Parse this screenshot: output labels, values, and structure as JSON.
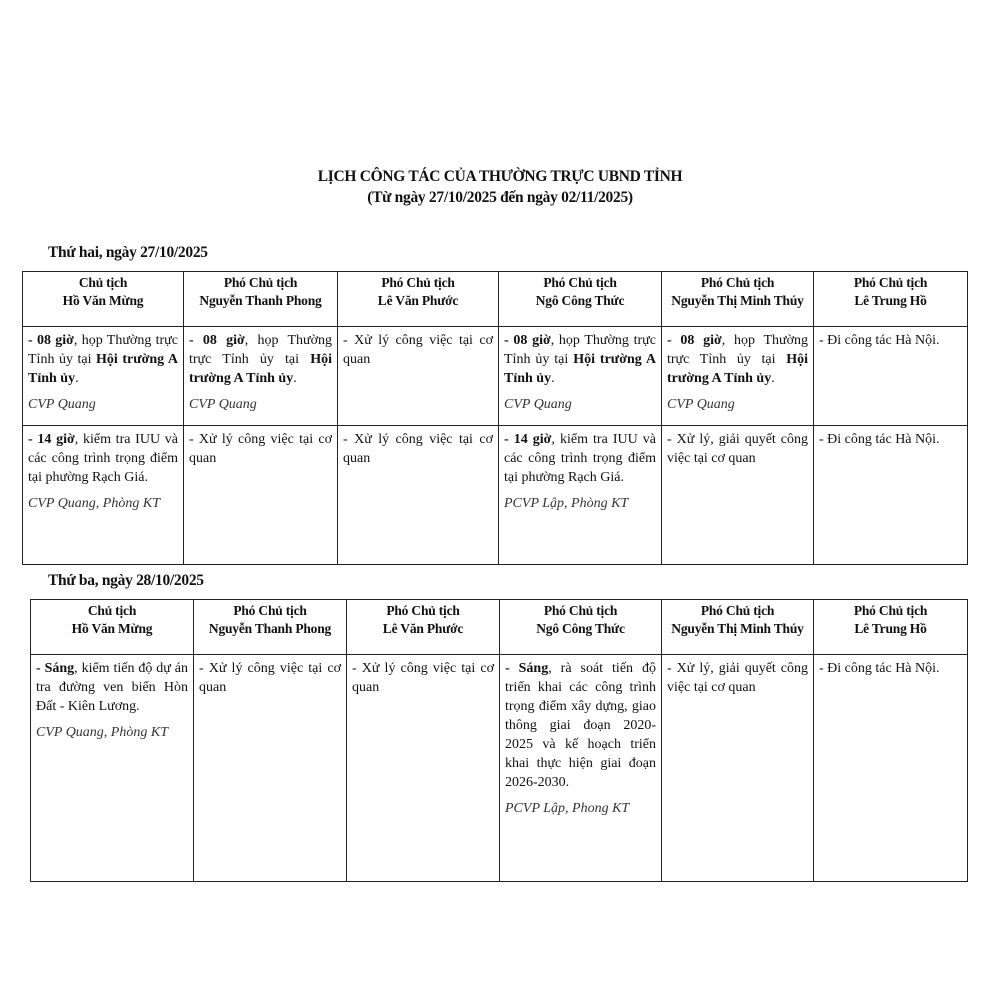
{
  "document": {
    "title": "LỊCH CÔNG TÁC CỦA THƯỜNG TRỰC UBND TỈNH",
    "subtitle": "(Từ ngày 27/10/2025 đến ngày 02/11/2025)"
  },
  "days": [
    {
      "label": "Thứ hai, ngày 27/10/2025",
      "headers": [
        {
          "role": "Chủ tịch",
          "name": "Hồ Văn Mừng"
        },
        {
          "role": "Phó Chủ tịch",
          "name": "Nguyễn Thanh Phong"
        },
        {
          "role": "Phó Chủ tịch",
          "name": "Lê Văn Phước"
        },
        {
          "role": "Phó Chủ tịch",
          "name": "Ngô Công Thức"
        },
        {
          "role": "Phó Chủ tịch",
          "name": "Nguyễn Thị Minh Thúy"
        },
        {
          "role": "Phó Chủ tịch",
          "name": "Lê Trung Hồ"
        }
      ],
      "rows": [
        [
          {
            "runs": [
              {
                "t": "- 08 giờ",
                "b": true
              },
              {
                "t": ", họp Thường trực Tỉnh ủy tại "
              },
              {
                "t": "Hội trường A Tỉnh ủy",
                "b": true
              },
              {
                "t": "."
              }
            ],
            "note": "CVP Quang"
          },
          {
            "runs": [
              {
                "t": "- 08 giờ",
                "b": true
              },
              {
                "t": ", họp Thường trực Tỉnh ủy tại "
              },
              {
                "t": "Hội trường A Tỉnh ủy",
                "b": true
              },
              {
                "t": "."
              }
            ],
            "note": "CVP Quang"
          },
          {
            "runs": [
              {
                "t": "- Xử lý công việc tại cơ quan"
              }
            ]
          },
          {
            "runs": [
              {
                "t": "- 08 giờ",
                "b": true
              },
              {
                "t": ", họp Thường trực Tỉnh ủy tại "
              },
              {
                "t": "Hội trường A Tỉnh ủy",
                "b": true
              },
              {
                "t": "."
              }
            ],
            "note": "CVP Quang"
          },
          {
            "runs": [
              {
                "t": "- 08 giờ",
                "b": true
              },
              {
                "t": ", họp Thường trực Tỉnh ủy tại "
              },
              {
                "t": "Hội trường A Tỉnh ủy",
                "b": true
              },
              {
                "t": "."
              }
            ],
            "note": "CVP Quang"
          },
          {
            "runs": [
              {
                "t": "- Đi công tác Hà Nội."
              }
            ]
          }
        ],
        [
          {
            "runs": [
              {
                "t": "- 14 giờ",
                "b": true
              },
              {
                "t": ", kiểm tra IUU và các công trình trọng điểm tại phường Rạch Giá."
              }
            ],
            "note": "CVP Quang, Phòng KT"
          },
          {
            "runs": [
              {
                "t": "- Xử lý công việc tại cơ quan"
              }
            ]
          },
          {
            "runs": [
              {
                "t": "- Xử lý công việc tại cơ quan"
              }
            ]
          },
          {
            "runs": [
              {
                "t": "- 14 giờ",
                "b": true
              },
              {
                "t": ", kiểm tra IUU và các công trình trọng điểm tại phường Rạch Giá."
              }
            ],
            "note": "PCVP Lập, Phòng KT"
          },
          {
            "runs": [
              {
                "t": "- Xử lý, giải quyết công việc tại cơ quan"
              }
            ]
          },
          {
            "runs": [
              {
                "t": "- Đi công tác Hà Nội."
              }
            ]
          }
        ]
      ]
    },
    {
      "label": "Thứ ba, ngày 28/10/2025",
      "headers": [
        {
          "role": "Chủ tịch",
          "name": "Hồ Văn Mừng"
        },
        {
          "role": "Phó Chủ tịch",
          "name": "Nguyễn Thanh Phong"
        },
        {
          "role": "Phó Chủ tịch",
          "name": "Lê Văn Phước"
        },
        {
          "role": "Phó Chủ tịch",
          "name": "Ngô Công Thức"
        },
        {
          "role": "Phó Chủ tịch",
          "name": "Nguyễn Thị Minh Thúy"
        },
        {
          "role": "Phó Chủ tịch",
          "name": "Lê Trung Hồ"
        }
      ],
      "rows": [
        [
          {
            "runs": [
              {
                "t": "- Sáng",
                "b": true
              },
              {
                "t": ", kiểm tiến độ dự án tra đường ven biển Hòn Đất - Kiên Lương."
              }
            ],
            "note": "CVP Quang, Phòng KT"
          },
          {
            "runs": [
              {
                "t": "- Xử lý công việc tại cơ quan"
              }
            ]
          },
          {
            "runs": [
              {
                "t": "- Xử lý công việc tại cơ quan"
              }
            ]
          },
          {
            "runs": [
              {
                "t": "- Sáng",
                "b": true
              },
              {
                "t": ", rà soát tiến độ triển khai các công trình trọng điểm xây dựng, giao thông giai đoạn 2020-2025 và kế hoạch triển khai thực hiện giai đoạn 2026-2030."
              }
            ],
            "note": "PCVP Lập, Phong KT"
          },
          {
            "runs": [
              {
                "t": "- Xử lý, giải quyết công việc tại cơ quan"
              }
            ]
          },
          {
            "runs": [
              {
                "t": "- Đi công tác Hà Nội."
              }
            ]
          }
        ]
      ]
    }
  ]
}
